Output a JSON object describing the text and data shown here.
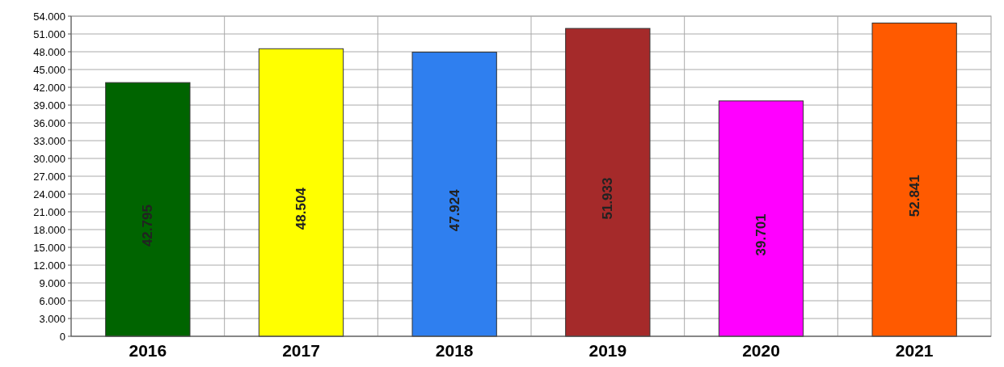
{
  "chart_data": {
    "type": "bar",
    "categories": [
      "2016",
      "2017",
      "2018",
      "2019",
      "2020",
      "2021"
    ],
    "values": [
      42795,
      48504,
      47924,
      51933,
      39701,
      52841
    ],
    "colors": [
      "#006400",
      "#ffff00",
      "#2f7fef",
      "#a52a2a",
      "#ff00ff",
      "#ff5a00"
    ],
    "value_labels": [
      "42.795",
      "48.504",
      "47.924",
      "51.933",
      "39.701",
      "52.841"
    ],
    "ylim": [
      0,
      54000
    ],
    "yticks": [
      0,
      {
        "value": 3000,
        "label": "3.000"
      },
      {
        "value": 6000,
        "label": "6.000"
      },
      {
        "value": 9000,
        "label": "9.000"
      },
      {
        "value": 12000,
        "label": "12.000"
      },
      {
        "value": 15000,
        "label": "15.000"
      },
      {
        "value": 18000,
        "label": "18.000"
      },
      {
        "value": 21000,
        "label": "21.000"
      },
      {
        "value": 24000,
        "label": "24.000"
      },
      {
        "value": 27000,
        "label": "27.000"
      },
      {
        "value": 30000,
        "label": "30.000"
      },
      {
        "value": 33000,
        "label": "33.000"
      },
      {
        "value": 36000,
        "label": "36.000"
      },
      {
        "value": 39000,
        "label": "39.000"
      },
      {
        "value": 42000,
        "label": "42.000"
      },
      {
        "value": 45000,
        "label": "45.000"
      },
      {
        "value": 48000,
        "label": "48.000"
      },
      {
        "value": 51000,
        "label": "51.000"
      },
      {
        "value": 54000,
        "label": "54.000"
      }
    ],
    "grid": true
  }
}
